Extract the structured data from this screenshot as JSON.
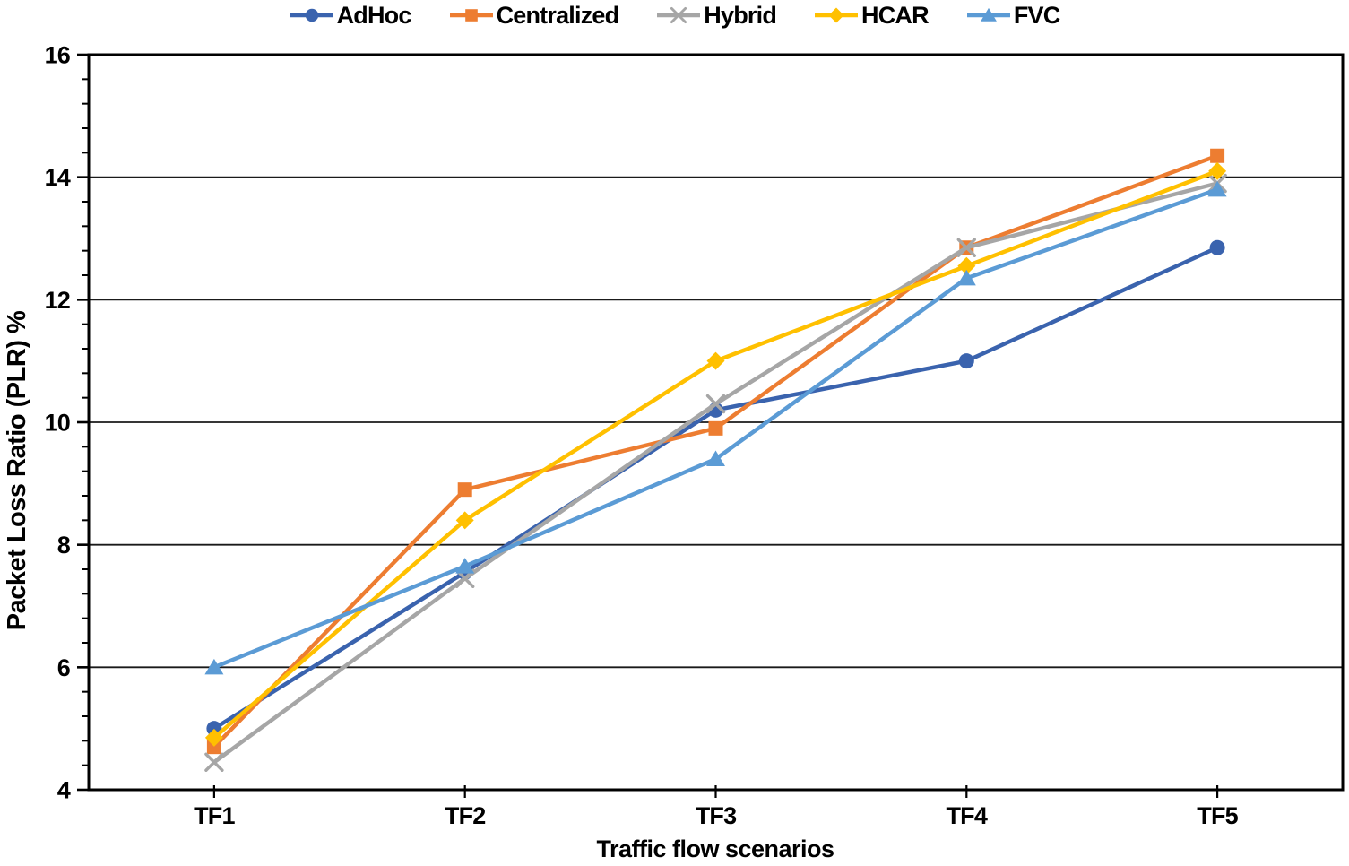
{
  "chart_data": {
    "type": "line",
    "title": "",
    "categories": [
      "TF1",
      "TF2",
      "TF3",
      "TF4",
      "TF5"
    ],
    "series": [
      {
        "name": "AdHoc",
        "color": "#3A63AE",
        "marker": "circle",
        "values": [
          5.0,
          7.55,
          10.2,
          11.0,
          12.85
        ]
      },
      {
        "name": "Centralized",
        "color": "#ED7D31",
        "marker": "square",
        "values": [
          4.7,
          8.9,
          9.9,
          12.85,
          14.35
        ]
      },
      {
        "name": "Hybrid",
        "color": "#A6A6A6",
        "marker": "x",
        "values": [
          4.45,
          7.45,
          10.3,
          12.85,
          13.9
        ]
      },
      {
        "name": "HCAR",
        "color": "#FFC000",
        "marker": "diamond",
        "values": [
          4.85,
          8.4,
          11.0,
          12.55,
          14.1
        ]
      },
      {
        "name": "FVC",
        "color": "#5B9BD5",
        "marker": "triangle-up",
        "values": [
          6.0,
          7.65,
          9.4,
          12.35,
          13.8
        ]
      }
    ],
    "xlabel": "Traffic flow scenarios",
    "ylabel": "Packet Loss Ratio (PLR) %",
    "ylim": [
      4,
      16
    ],
    "y_major_interval": 2,
    "y_minor_interval": 0.4,
    "y_tick_labels": [
      "4",
      "6",
      "8",
      "10",
      "12",
      "14",
      "16"
    ],
    "grid": "horizontal-major",
    "legend_position": "top-center",
    "axis_color": "#000000",
    "gridline_color": "#1a1a1a",
    "text_color": "#000000",
    "background_color": "#ffffff"
  }
}
